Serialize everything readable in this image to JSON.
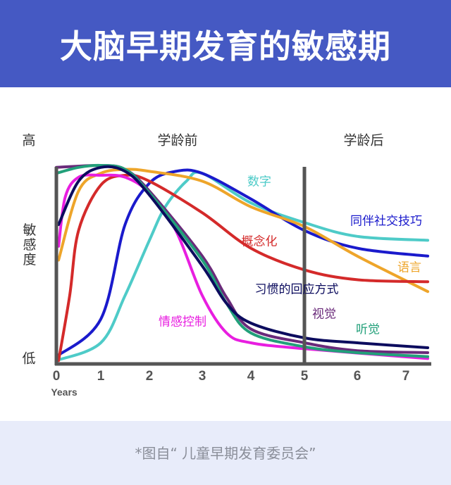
{
  "header": {
    "title": "大脑早期发育的敏感期"
  },
  "footer": {
    "source": "*图自“ 儿童早期发育委员会”"
  },
  "chart_data": {
    "type": "line",
    "title": "大脑早期发育的敏感期",
    "xlabel": "Years",
    "ylabel": "敏感度",
    "y_high_label": "高",
    "y_low_label": "低",
    "ylim": [
      0,
      100
    ],
    "xlim": [
      0,
      7.45
    ],
    "x_ticks": [
      "0",
      "1",
      "2",
      "3",
      "4",
      "5",
      "6",
      "7"
    ],
    "grid": false,
    "divider_x": 5,
    "regions": [
      "学龄前",
      "学龄后"
    ],
    "series": [
      {
        "name": "数字",
        "color": "#4ecbc8",
        "x": [
          0,
          1,
          1.5,
          2,
          2.3,
          2.7,
          3,
          4,
          5,
          6,
          7.45
        ],
        "y": [
          1,
          10,
          34,
          62,
          79,
          92,
          96,
          81,
          71,
          64,
          62
        ]
      },
      {
        "name": "同伴社交技巧",
        "color": "#1a1acc",
        "x": [
          0,
          1,
          1.5,
          2,
          2.5,
          3,
          4,
          5,
          6,
          7.45
        ],
        "y": [
          3,
          22,
          70,
          91,
          97,
          96,
          83,
          67,
          58,
          54
        ]
      },
      {
        "name": "语言",
        "color": "#eea52a",
        "x": [
          0.05,
          0.5,
          1,
          1.5,
          2,
          3,
          4,
          5,
          6,
          7.45
        ],
        "y": [
          52,
          87,
          96,
          98,
          97,
          92,
          79,
          69,
          54,
          36
        ]
      },
      {
        "name": "概念化",
        "color": "#d42a2a",
        "x": [
          0.05,
          0.3,
          0.5,
          1,
          1.5,
          2,
          3,
          4,
          5,
          6,
          7.45
        ],
        "y": [
          1,
          34,
          67,
          90,
          95,
          92,
          76,
          58,
          47,
          42,
          41
        ]
      },
      {
        "name": "情感控制",
        "color": "#e81ee0",
        "x": [
          0.05,
          0.2,
          0.5,
          1,
          1.5,
          2,
          2.5,
          3,
          3.5,
          4,
          5,
          7.45
        ],
        "y": [
          59,
          84,
          94,
          95,
          94,
          86,
          67,
          34,
          15,
          10,
          7,
          2
        ]
      },
      {
        "name": "视觉",
        "color": "#6a2a7a",
        "x": [
          0,
          1,
          1.5,
          2,
          3,
          3.5,
          4,
          5,
          6,
          7.45
        ],
        "y": [
          99,
          100,
          98,
          87,
          54,
          33,
          17,
          10,
          6,
          5
        ]
      },
      {
        "name": "听觉",
        "color": "#22a07a",
        "x": [
          0,
          0.5,
          1,
          1.5,
          2,
          3,
          3.5,
          4,
          5,
          6,
          7.45
        ],
        "y": [
          96,
          99,
          100,
          98,
          86,
          52,
          30,
          15,
          8,
          5,
          3
        ]
      },
      {
        "name": "习惯的回应方式",
        "color": "#0c0c5e",
        "x": [
          0.05,
          0.5,
          1,
          1.5,
          2,
          3,
          3.5,
          4,
          5,
          6,
          7.45
        ],
        "y": [
          70,
          92,
          99,
          97,
          85,
          49,
          30,
          20,
          12.5,
          10,
          7.5
        ]
      }
    ]
  }
}
